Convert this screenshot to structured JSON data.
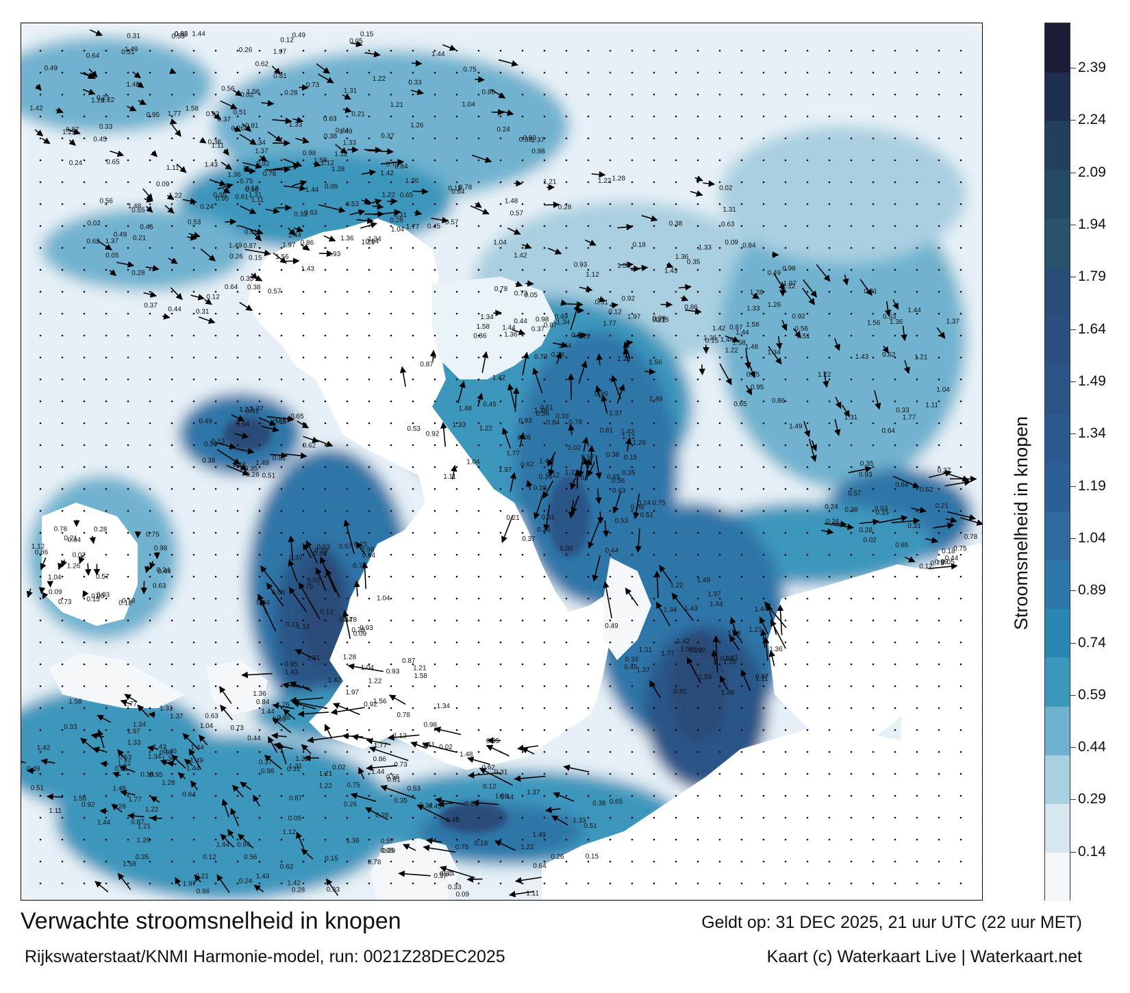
{
  "title": "Verwachte stroomsnelheid in knopen",
  "subtitle": "Rijkswaterstaat/KNMI Harmonie-model, run: 0021Z28DEC2025",
  "valid_time": "Geldt op: 31 DEC 2025, 21 uur UTC (22 uur MET)",
  "credit": "Kaart (c) Waterkaart Live | Waterkaart.net",
  "colorbar": {
    "label": "Stroomsnelheid in knopen",
    "ticks": [
      "2.39",
      "2.24",
      "2.09",
      "1.94",
      "1.79",
      "1.64",
      "1.49",
      "1.34",
      "1.19",
      "1.04",
      "0.89",
      "0.74",
      "0.59",
      "0.44",
      "0.29",
      "0.14"
    ],
    "min": 0,
    "max": 2.52,
    "colors": [
      "#f4f8fb",
      "#d7e7ef",
      "#a9cfe0",
      "#6fb2cf",
      "#3c97bd",
      "#2a86b3",
      "#2d76a8",
      "#2f699e",
      "#2d5f97",
      "#2c5890",
      "#2b5487",
      "#2b507f",
      "#2a4c78",
      "#28546a",
      "#244a63",
      "#233f5e",
      "#1e2f4f",
      "#1b1d34"
    ]
  },
  "map_value_labels": [
    "0.21",
    "0.28",
    "0.24",
    "0.37",
    "0.35",
    "0.38",
    "0.31",
    "0.26",
    "0.62",
    "0.65",
    "0.56",
    "0.64",
    "0.53",
    "0.51",
    "0.49",
    "0.33",
    "0.45",
    "0.81",
    "1.48",
    "1.22",
    "1.37",
    "1.49",
    "1.11",
    "0.95",
    "1.56",
    "1.33",
    "1.44",
    "1.42",
    "1.22",
    "1.28",
    "0.92",
    "0.87",
    "1.43",
    "1.58",
    "1.97",
    "1.77",
    "1.34",
    "1.21",
    "1.31",
    "1.44",
    "1.36",
    "1.26",
    "1.04",
    "1.12",
    "0.98",
    "0.86",
    "0.93",
    "0.84",
    "0.78",
    "0.73",
    "0.75",
    "0.63",
    "0.57",
    "0.44",
    "0.18",
    "0.12",
    "0.09",
    "0.05",
    "0.02",
    "0.15"
  ]
}
